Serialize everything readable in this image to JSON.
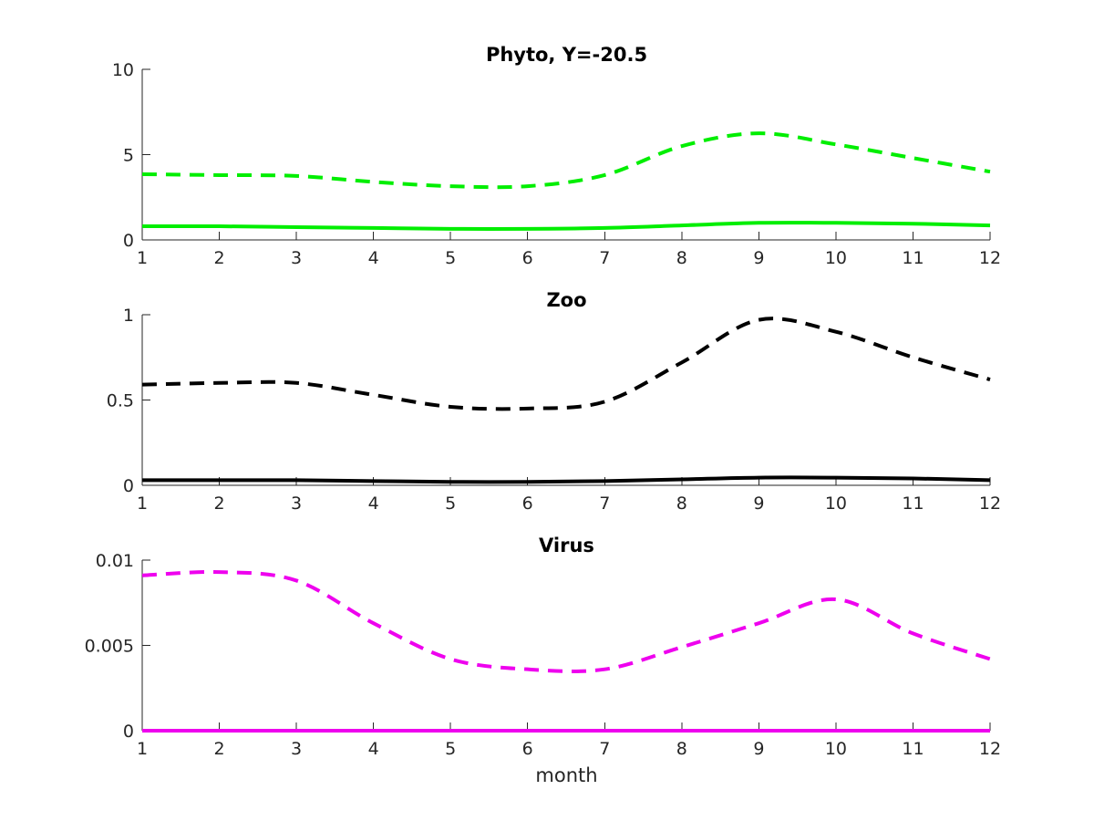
{
  "chart_data": [
    {
      "type": "line",
      "title": "Phyto, Y=-20.5",
      "xlabel": "",
      "ylabel": "",
      "x": [
        1,
        2,
        3,
        4,
        5,
        6,
        7,
        8,
        9,
        10,
        11,
        12
      ],
      "xlim": [
        1,
        12
      ],
      "ylim": [
        0,
        10
      ],
      "xticks": [
        "1",
        "2",
        "3",
        "4",
        "5",
        "6",
        "7",
        "8",
        "9",
        "10",
        "11",
        "12"
      ],
      "yticks": [
        {
          "value": 0,
          "label": "0"
        },
        {
          "value": 5,
          "label": "5"
        },
        {
          "value": 10,
          "label": "10"
        }
      ],
      "series": [
        {
          "name": "dashed",
          "style": "dashed",
          "color": "#00ee00",
          "values": [
            3.85,
            3.8,
            3.75,
            3.4,
            3.15,
            3.15,
            3.8,
            5.5,
            6.25,
            5.6,
            4.8,
            4.0
          ]
        },
        {
          "name": "solid",
          "style": "solid",
          "color": "#00ee00",
          "values": [
            0.8,
            0.8,
            0.75,
            0.7,
            0.65,
            0.65,
            0.7,
            0.85,
            1.0,
            1.0,
            0.95,
            0.85
          ]
        }
      ]
    },
    {
      "type": "line",
      "title": "Zoo",
      "xlabel": "",
      "ylabel": "",
      "x": [
        1,
        2,
        3,
        4,
        5,
        6,
        7,
        8,
        9,
        10,
        11,
        12
      ],
      "xlim": [
        1,
        12
      ],
      "ylim": [
        0,
        1
      ],
      "xticks": [
        "1",
        "2",
        "3",
        "4",
        "5",
        "6",
        "7",
        "8",
        "9",
        "10",
        "11",
        "12"
      ],
      "yticks": [
        {
          "value": 0,
          "label": "0"
        },
        {
          "value": 0.5,
          "label": "0.5"
        },
        {
          "value": 1,
          "label": "1"
        }
      ],
      "series": [
        {
          "name": "dashed",
          "style": "dashed",
          "color": "#000000",
          "values": [
            0.59,
            0.6,
            0.6,
            0.53,
            0.46,
            0.45,
            0.49,
            0.72,
            0.97,
            0.9,
            0.75,
            0.62
          ]
        },
        {
          "name": "solid",
          "style": "solid",
          "color": "#000000",
          "values": [
            0.03,
            0.03,
            0.03,
            0.025,
            0.02,
            0.02,
            0.025,
            0.035,
            0.045,
            0.045,
            0.04,
            0.03
          ]
        }
      ]
    },
    {
      "type": "line",
      "title": "Virus",
      "xlabel": "month",
      "ylabel": "",
      "x": [
        1,
        2,
        3,
        4,
        5,
        6,
        7,
        8,
        9,
        10,
        11,
        12
      ],
      "xlim": [
        1,
        12
      ],
      "ylim": [
        0,
        0.01
      ],
      "xticks": [
        "1",
        "2",
        "3",
        "4",
        "5",
        "6",
        "7",
        "8",
        "9",
        "10",
        "11",
        "12"
      ],
      "yticks": [
        {
          "value": 0,
          "label": "0"
        },
        {
          "value": 0.005,
          "label": "0.005"
        },
        {
          "value": 0.01,
          "label": "0.01"
        }
      ],
      "series": [
        {
          "name": "dashed",
          "style": "dashed",
          "color": "#ee00ee",
          "values": [
            0.0091,
            0.0093,
            0.0088,
            0.0063,
            0.0042,
            0.0036,
            0.0036,
            0.0049,
            0.0063,
            0.0077,
            0.0057,
            0.0042
          ]
        },
        {
          "name": "solid",
          "style": "solid",
          "color": "#ee00ee",
          "values": [
            0,
            0,
            0,
            0,
            0,
            0,
            0,
            0,
            0,
            0,
            0,
            0
          ]
        }
      ]
    }
  ]
}
